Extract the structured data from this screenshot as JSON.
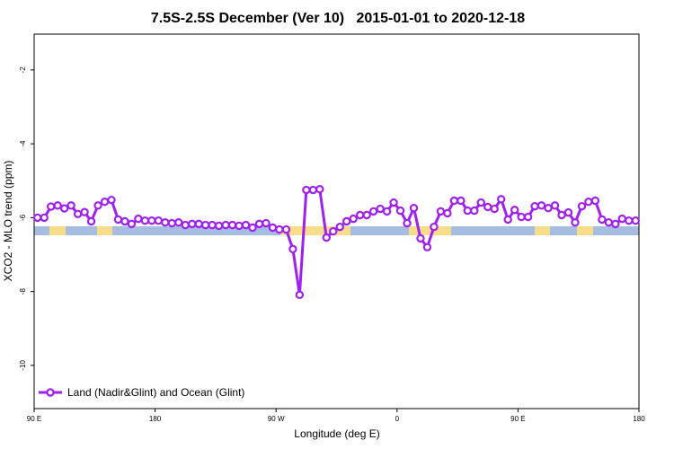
{
  "chart_data": {
    "type": "line",
    "title": "7.5S-2.5S December (Ver 10)   2015-01-01 to 2020-12-18",
    "xlabel": "Longitude (deg E)",
    "ylabel": "XCO2 - MLO trend (ppm)",
    "x": [
      92.5,
      97.5,
      102.5,
      107.5,
      112.5,
      117.5,
      122.5,
      127.5,
      132.5,
      137.5,
      142.5,
      147.5,
      152.5,
      157.5,
      162.5,
      167.5,
      172.5,
      177.5,
      182.5,
      187.5,
      192.5,
      197.5,
      202.5,
      207.5,
      212.5,
      217.5,
      222.5,
      227.5,
      232.5,
      237.5,
      242.5,
      247.5,
      252.5,
      257.5,
      262.5,
      267.5,
      272.5,
      277.5,
      282.5,
      287.5,
      292.5,
      297.5,
      302.5,
      307.5,
      312.5,
      317.5,
      322.5,
      327.5,
      332.5,
      337.5,
      342.5,
      347.5,
      352.5,
      357.5,
      362.5,
      367.5,
      372.5,
      377.5,
      382.5,
      387.5,
      392.5,
      397.5,
      402.5,
      407.5,
      412.5,
      417.5,
      422.5,
      427.5,
      432.5,
      437.5,
      442.5,
      447.5,
      452.5,
      457.5,
      462.5,
      467.5,
      472.5,
      477.5,
      482.5,
      487.5,
      492.5,
      497.5,
      502.5,
      507.5,
      512.5,
      517.5,
      522.5,
      527.5,
      532.5,
      537.5
    ],
    "series": [
      {
        "name": "Land (Nadir&Glint) and Ocean (Glint)",
        "color": "#a020f0",
        "values": [
          -6.0,
          -6.0,
          -5.7,
          -5.67,
          -5.75,
          -5.67,
          -5.9,
          -5.85,
          -6.1,
          -5.67,
          -5.57,
          -5.52,
          -6.05,
          -6.1,
          -6.17,
          -6.03,
          -6.08,
          -6.08,
          -6.08,
          -6.13,
          -6.15,
          -6.13,
          -6.2,
          -6.17,
          -6.17,
          -6.2,
          -6.2,
          -6.22,
          -6.2,
          -6.2,
          -6.22,
          -6.2,
          -6.27,
          -6.17,
          -6.15,
          -6.27,
          -6.32,
          -6.32,
          -6.85,
          -8.09,
          -5.25,
          -5.25,
          -5.23,
          -6.54,
          -6.37,
          -6.25,
          -6.1,
          -6.03,
          -5.93,
          -5.93,
          -5.83,
          -5.76,
          -5.83,
          -5.59,
          -5.81,
          -6.15,
          -5.74,
          -6.56,
          -6.8,
          -6.25,
          -5.83,
          -5.88,
          -5.54,
          -5.54,
          -5.81,
          -5.81,
          -5.59,
          -5.71,
          -5.76,
          -5.5,
          -6.05,
          -5.79,
          -5.98,
          -5.98,
          -5.69,
          -5.67,
          -5.74,
          -5.67,
          -5.93,
          -5.86,
          -6.13,
          -5.69,
          -5.57,
          -5.54,
          -6.05,
          -6.13,
          -6.17,
          -6.03,
          -6.08,
          -6.08
        ]
      }
    ],
    "xlim": [
      90,
      540
    ],
    "xticks": [
      {
        "value": 90,
        "label": "90 E"
      },
      180,
      {
        "value": 270,
        "label": "90 W"
      },
      {
        "value": 360,
        "label": "0"
      },
      {
        "value": 450,
        "label": "90 E"
      },
      {
        "value": 540,
        "label": "180"
      }
    ],
    "ylim": [
      -11.17,
      -1.03
    ],
    "yticks": [
      -2,
      -4,
      -6,
      -8,
      -10
    ],
    "legend": "bottom-left"
  }
}
